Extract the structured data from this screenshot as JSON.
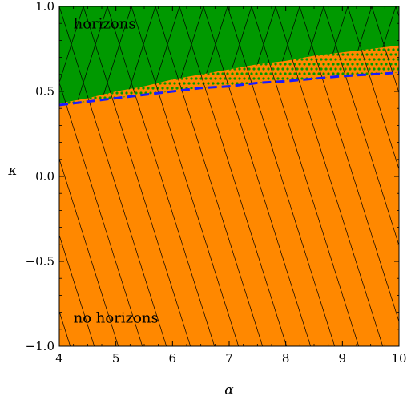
{
  "chart_data": {
    "type": "area",
    "title": "",
    "xlabel": "α",
    "ylabel": "κ",
    "xlim": [
      4,
      10
    ],
    "ylim": [
      -1.0,
      1.0
    ],
    "x_ticks": [
      4,
      5,
      6,
      7,
      8,
      9,
      10
    ],
    "y_ticks": [
      -1.0,
      -0.5,
      0.0,
      0.5,
      1.0
    ],
    "x_tick_labels": [
      "4",
      "5",
      "6",
      "7",
      "8",
      "9",
      "10"
    ],
    "y_tick_labels": [
      "−1.0",
      "−0.5",
      "0.0",
      "0.5",
      "1.0"
    ],
    "grid": false,
    "regions": [
      {
        "name": "horizons",
        "color": "#009900",
        "position": "upper"
      },
      {
        "name": "no horizons",
        "color": "#ff8800",
        "position": "lower"
      }
    ],
    "boundaries": {
      "upper_region_lower_edge": {
        "x": [
          4.0,
          4.5,
          5.0,
          5.5,
          6.0,
          6.5,
          7.0,
          7.5,
          8.0,
          8.5,
          9.0,
          9.5,
          10.0
        ],
        "y": [
          0.43,
          0.46,
          0.5,
          0.53,
          0.57,
          0.6,
          0.63,
          0.66,
          0.68,
          0.71,
          0.73,
          0.75,
          0.77
        ]
      },
      "dashed_line": {
        "color": "#1a1aff",
        "style": "dashed",
        "x": [
          4.0,
          4.5,
          5.0,
          5.5,
          6.0,
          6.5,
          7.0,
          7.5,
          8.0,
          8.5,
          9.0,
          9.5,
          10.0
        ],
        "y": [
          0.42,
          0.44,
          0.46,
          0.48,
          0.5,
          0.52,
          0.53,
          0.55,
          0.56,
          0.575,
          0.59,
          0.6,
          0.61
        ]
      },
      "dotted_band": {
        "dot_color": "#009900",
        "lower": "dashed_line",
        "upper": "upper_region_lower_edge"
      }
    },
    "hatch": {
      "description": "two families of thin black diagonal lines over the full plot",
      "upper_region": "crossed",
      "lower_region": "single direction"
    }
  }
}
